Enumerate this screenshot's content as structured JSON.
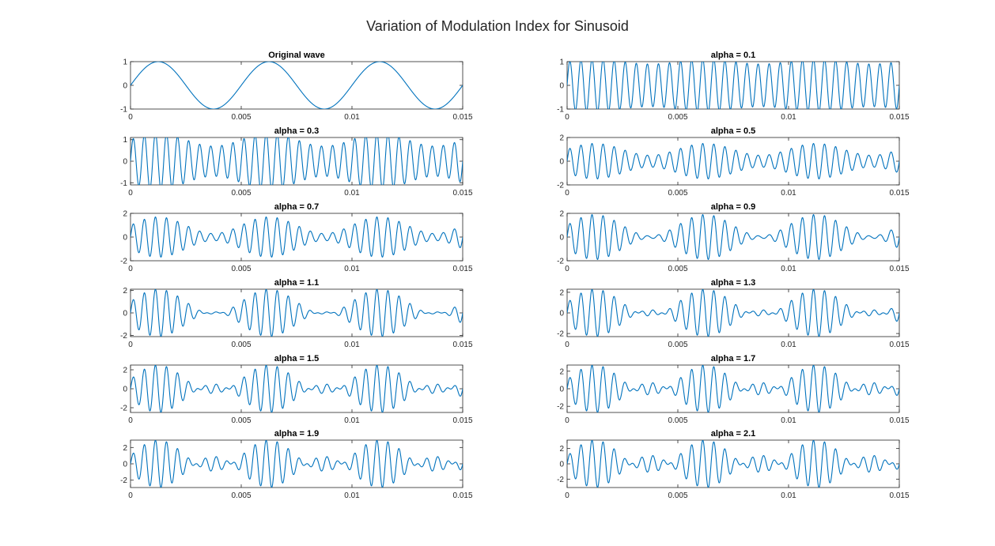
{
  "figure_title": "Variation of Modulation Index for Sinusoid",
  "colors": {
    "line": "#0072BD",
    "axis": "#262626",
    "background": "#ffffff"
  },
  "signal": {
    "message_freq_hz": 200,
    "carrier_freq_hz": 2000
  },
  "chart_data": [
    {
      "type": "line",
      "title": "Original wave",
      "alpha": null,
      "xlim": [
        0,
        0.015
      ],
      "ylim": [
        -1,
        1
      ],
      "xticks": [
        0,
        0.005,
        0.01,
        0.015
      ],
      "xtick_labels": [
        "0",
        "0.005",
        "0.01",
        "0.015"
      ],
      "yticks": [
        -1,
        0,
        1
      ],
      "ytick_labels": [
        "-1",
        "0",
        "1"
      ]
    },
    {
      "type": "line",
      "title": "alpha = 0.1",
      "alpha": 0.1,
      "xlim": [
        0,
        0.015
      ],
      "ylim": [
        -1,
        1
      ],
      "xticks": [
        0,
        0.005,
        0.01,
        0.015
      ],
      "xtick_labels": [
        "0",
        "0.005",
        "0.01",
        "0.015"
      ],
      "yticks": [
        -1,
        0,
        1
      ],
      "ytick_labels": [
        "-1",
        "0",
        "1"
      ]
    },
    {
      "type": "line",
      "title": "alpha = 0.3",
      "alpha": 0.3,
      "xlim": [
        0,
        0.015
      ],
      "ylim": [
        -1.1,
        1.1
      ],
      "xticks": [
        0,
        0.005,
        0.01,
        0.015
      ],
      "xtick_labels": [
        "0",
        "0.005",
        "0.01",
        "0.015"
      ],
      "yticks": [
        -1,
        0,
        1
      ],
      "ytick_labels": [
        "-1",
        "0",
        "1"
      ]
    },
    {
      "type": "line",
      "title": "alpha = 0.5",
      "alpha": 0.5,
      "xlim": [
        0,
        0.015
      ],
      "ylim": [
        -2,
        2
      ],
      "xticks": [
        0,
        0.005,
        0.01,
        0.015
      ],
      "xtick_labels": [
        "0",
        "0.005",
        "0.01",
        "0.015"
      ],
      "yticks": [
        -2,
        0,
        2
      ],
      "ytick_labels": [
        "-2",
        "0",
        "2"
      ]
    },
    {
      "type": "line",
      "title": "alpha = 0.7",
      "alpha": 0.7,
      "xlim": [
        0,
        0.015
      ],
      "ylim": [
        -2,
        2
      ],
      "xticks": [
        0,
        0.005,
        0.01,
        0.015
      ],
      "xtick_labels": [
        "0",
        "0.005",
        "0.01",
        "0.015"
      ],
      "yticks": [
        -2,
        0,
        2
      ],
      "ytick_labels": [
        "-2",
        "0",
        "2"
      ]
    },
    {
      "type": "line",
      "title": "alpha = 0.9",
      "alpha": 0.9,
      "xlim": [
        0,
        0.015
      ],
      "ylim": [
        -2,
        2
      ],
      "xticks": [
        0,
        0.005,
        0.01,
        0.015
      ],
      "xtick_labels": [
        "0",
        "0.005",
        "0.01",
        "0.015"
      ],
      "yticks": [
        -2,
        0,
        2
      ],
      "ytick_labels": [
        "-2",
        "0",
        "2"
      ]
    },
    {
      "type": "line",
      "title": "alpha = 1.1",
      "alpha": 1.1,
      "xlim": [
        0,
        0.015
      ],
      "ylim": [
        -2.1,
        2.1
      ],
      "xticks": [
        0,
        0.005,
        0.01,
        0.015
      ],
      "xtick_labels": [
        "0",
        "0.005",
        "0.01",
        "0.015"
      ],
      "yticks": [
        -2,
        0,
        2
      ],
      "ytick_labels": [
        "-2",
        "0",
        "2"
      ]
    },
    {
      "type": "line",
      "title": "alpha = 1.3",
      "alpha": 1.3,
      "xlim": [
        0,
        0.015
      ],
      "ylim": [
        -2.3,
        2.3
      ],
      "xticks": [
        0,
        0.005,
        0.01,
        0.015
      ],
      "xtick_labels": [
        "0",
        "0.005",
        "0.01",
        "0.015"
      ],
      "yticks": [
        -2,
        0,
        2
      ],
      "ytick_labels": [
        "-2",
        "0",
        "2"
      ]
    },
    {
      "type": "line",
      "title": "alpha = 1.5",
      "alpha": 1.5,
      "xlim": [
        0,
        0.015
      ],
      "ylim": [
        -2.5,
        2.5
      ],
      "xticks": [
        0,
        0.005,
        0.01,
        0.015
      ],
      "xtick_labels": [
        "0",
        "0.005",
        "0.01",
        "0.015"
      ],
      "yticks": [
        -2,
        0,
        2
      ],
      "ytick_labels": [
        "-2",
        "0",
        "2"
      ]
    },
    {
      "type": "line",
      "title": "alpha = 1.7",
      "alpha": 1.7,
      "xlim": [
        0,
        0.015
      ],
      "ylim": [
        -2.7,
        2.7
      ],
      "xticks": [
        0,
        0.005,
        0.01,
        0.015
      ],
      "xtick_labels": [
        "0",
        "0.005",
        "0.01",
        "0.015"
      ],
      "yticks": [
        -2,
        0,
        2
      ],
      "ytick_labels": [
        "-2",
        "0",
        "2"
      ]
    },
    {
      "type": "line",
      "title": "alpha = 1.9",
      "alpha": 1.9,
      "xlim": [
        0,
        0.015
      ],
      "ylim": [
        -2.9,
        2.9
      ],
      "xticks": [
        0,
        0.005,
        0.01,
        0.015
      ],
      "xtick_labels": [
        "0",
        "0.005",
        "0.01",
        "0.015"
      ],
      "yticks": [
        -2,
        0,
        2
      ],
      "ytick_labels": [
        "-2",
        "0",
        "2"
      ]
    },
    {
      "type": "line",
      "title": "alpha = 2.1",
      "alpha": 2.1,
      "xlim": [
        0,
        0.015
      ],
      "ylim": [
        -3.1,
        3.1
      ],
      "xticks": [
        0,
        0.005,
        0.01,
        0.015
      ],
      "xtick_labels": [
        "0",
        "0.005",
        "0.01",
        "0.015"
      ],
      "yticks": [
        -2,
        0,
        2
      ],
      "ytick_labels": [
        "-2",
        "0",
        "2"
      ]
    }
  ]
}
